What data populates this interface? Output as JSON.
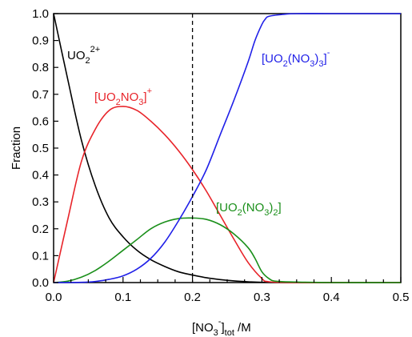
{
  "chart_data": {
    "type": "line",
    "xlabel": "[NO3-]tot /M",
    "ylabel": "Fraction",
    "xlim": [
      0.0,
      0.5
    ],
    "ylim": [
      0.0,
      1.0
    ],
    "x_ticks": [
      "0.0",
      "0.1",
      "0.2",
      "0.3",
      "0.4",
      "0.5"
    ],
    "y_ticks": [
      "0.0",
      "0.1",
      "0.2",
      "0.3",
      "0.4",
      "0.5",
      "0.6",
      "0.7",
      "0.8",
      "0.9",
      "1.0"
    ],
    "grid": false,
    "reference_line": {
      "x": 0.2,
      "style": "dashed"
    },
    "series": [
      {
        "name": "UO2 2+",
        "color": "#000000",
        "x": [
          0.0,
          0.02,
          0.04,
          0.06,
          0.08,
          0.1,
          0.12,
          0.14,
          0.16,
          0.18,
          0.2,
          0.22,
          0.24,
          0.26,
          0.28,
          0.3,
          0.35,
          0.4,
          0.5
        ],
        "y": [
          1.0,
          0.76,
          0.53,
          0.36,
          0.24,
          0.17,
          0.12,
          0.085,
          0.06,
          0.04,
          0.028,
          0.018,
          0.011,
          0.006,
          0.003,
          0.001,
          0.0,
          0.0,
          0.0
        ]
      },
      {
        "name": "[UO2NO3]+",
        "color": "#e8242a",
        "x": [
          0.0,
          0.02,
          0.04,
          0.06,
          0.08,
          0.1,
          0.12,
          0.14,
          0.16,
          0.18,
          0.2,
          0.22,
          0.24,
          0.26,
          0.28,
          0.3,
          0.31,
          0.35,
          0.4,
          0.5
        ],
        "y": [
          0.0,
          0.23,
          0.45,
          0.57,
          0.64,
          0.655,
          0.64,
          0.6,
          0.55,
          0.49,
          0.42,
          0.34,
          0.25,
          0.16,
          0.075,
          0.015,
          0.003,
          0.0,
          0.0,
          0.0
        ]
      },
      {
        "name": "[UO2(NO3)2]",
        "color": "#1a8f1a",
        "x": [
          0.0,
          0.02,
          0.04,
          0.06,
          0.08,
          0.1,
          0.12,
          0.14,
          0.16,
          0.18,
          0.2,
          0.22,
          0.24,
          0.26,
          0.28,
          0.29,
          0.3,
          0.31,
          0.32,
          0.35,
          0.4,
          0.5
        ],
        "y": [
          0.0,
          0.005,
          0.02,
          0.045,
          0.08,
          0.12,
          0.16,
          0.2,
          0.225,
          0.238,
          0.24,
          0.235,
          0.215,
          0.18,
          0.13,
          0.09,
          0.04,
          0.015,
          0.005,
          0.002,
          0.0,
          0.0
        ]
      },
      {
        "name": "[UO2(NO3)3]-",
        "color": "#1f1fe8",
        "x": [
          0.0,
          0.04,
          0.06,
          0.08,
          0.1,
          0.12,
          0.14,
          0.16,
          0.18,
          0.2,
          0.22,
          0.24,
          0.26,
          0.28,
          0.29,
          0.3,
          0.305,
          0.31,
          0.33,
          0.35,
          0.4,
          0.5
        ],
        "y": [
          0.0,
          0.001,
          0.004,
          0.012,
          0.025,
          0.05,
          0.09,
          0.15,
          0.23,
          0.32,
          0.42,
          0.55,
          0.68,
          0.82,
          0.9,
          0.96,
          0.98,
          0.99,
          0.997,
          1.0,
          1.0,
          1.0
        ]
      }
    ]
  }
}
